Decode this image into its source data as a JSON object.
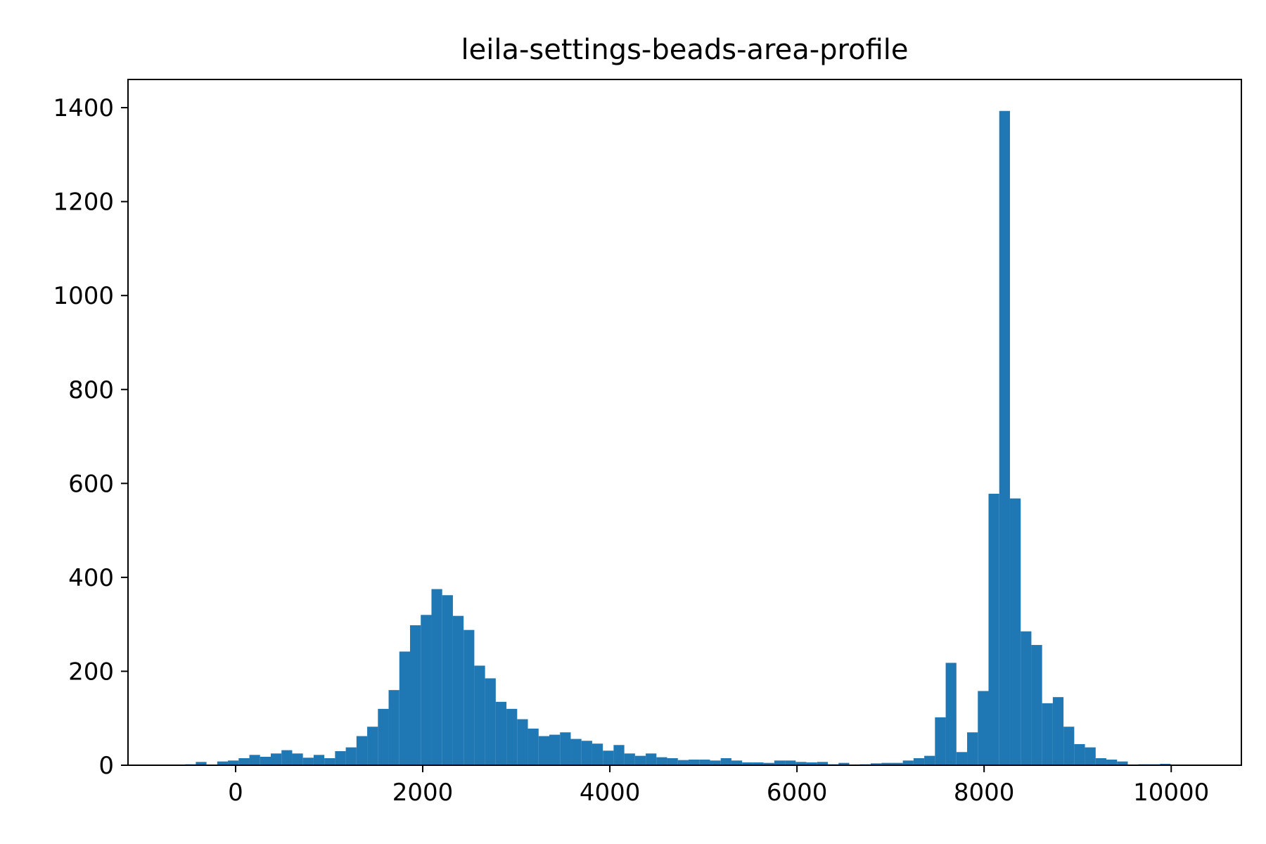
{
  "colors": {
    "bar": "#1f77b4",
    "axes": "#000000",
    "background": "#ffffff"
  },
  "chart_data": {
    "type": "bar",
    "title": "leila-settings-beads-area-profile",
    "xlabel": "",
    "ylabel": "",
    "xlim": [
      -1150,
      10750
    ],
    "ylim": [
      0,
      1460
    ],
    "grid": false,
    "legend": "none",
    "bin_width": 114.5,
    "xticks": [
      0,
      2000,
      4000,
      6000,
      8000,
      10000
    ],
    "xtick_labels": [
      "0",
      "2000",
      "4000",
      "6000",
      "8000",
      "10000"
    ],
    "yticks": [
      0,
      200,
      400,
      600,
      800,
      1000,
      1200,
      1400
    ],
    "ytick_labels": [
      "0",
      "200",
      "400",
      "600",
      "800",
      "1000",
      "1200",
      "1400"
    ],
    "bin_starts": [
      -540,
      -425.5,
      -311,
      -196.5,
      -82,
      32.5,
      147,
      261.5,
      376,
      490.5,
      605,
      719.5,
      834,
      948.5,
      1063,
      1177.5,
      1292,
      1406.5,
      1521,
      1635.5,
      1750,
      1864.5,
      1979,
      2093.5,
      2208,
      2322.5,
      2437,
      2551.5,
      2666,
      2780.5,
      2895,
      3009.5,
      3124,
      3238.5,
      3353,
      3467.5,
      3582,
      3696.5,
      3811,
      3925.5,
      4040,
      4154.5,
      4269,
      4383.5,
      4498,
      4612.5,
      4727,
      4841.5,
      4956,
      5070.5,
      5185,
      5299.5,
      5414,
      5528.5,
      5643,
      5757.5,
      5872,
      5986.5,
      6101,
      6215.5,
      6330,
      6444.5,
      6559,
      6673.5,
      6788,
      6902.5,
      7017,
      7131.5,
      7246,
      7360.5,
      7475,
      7589.5,
      7704,
      7818.5,
      7933,
      8047.5,
      8162,
      8276.5,
      8391,
      8505.5,
      8620,
      8734.5,
      8849,
      8963.5,
      9078,
      9192.5,
      9307,
      9421.5,
      9536,
      9650.5,
      9765,
      9879.5,
      9994
    ],
    "values": [
      2,
      7,
      1,
      8,
      10,
      15,
      22,
      18,
      25,
      32,
      25,
      16,
      22,
      15,
      30,
      38,
      62,
      82,
      120,
      160,
      242,
      298,
      320,
      375,
      362,
      318,
      288,
      212,
      185,
      135,
      120,
      98,
      78,
      62,
      65,
      70,
      56,
      52,
      46,
      31,
      43,
      25,
      20,
      25,
      17,
      15,
      11,
      12,
      12,
      10,
      15,
      10,
      6,
      6,
      5,
      10,
      10,
      7,
      6,
      7,
      2,
      5,
      0,
      2,
      4,
      5,
      5,
      10,
      15,
      20,
      102,
      218,
      28,
      70,
      158,
      578,
      1393,
      568,
      285,
      256,
      132,
      145,
      82,
      45,
      38,
      15,
      12,
      8,
      0,
      2,
      2,
      3,
      0
    ]
  }
}
